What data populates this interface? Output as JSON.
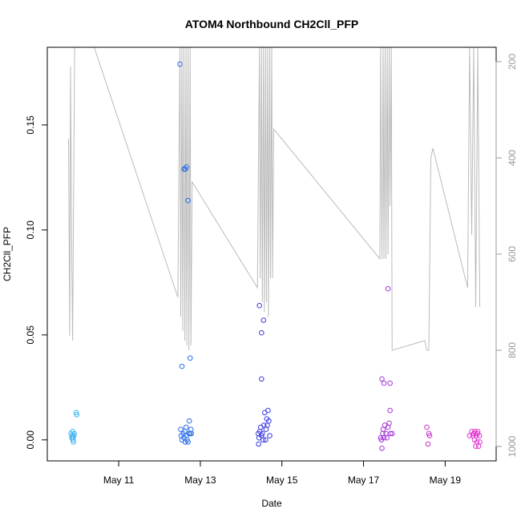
{
  "chart_data": {
    "type": "scatter",
    "title": "ATOM4 Northbound CH2Cll_PFP",
    "xlabel": "Date",
    "ylabel": "CH2Cll_PFP",
    "x_unit": "day of May",
    "xlim": [
      9.25,
      20.25
    ],
    "ylim": [
      -0.01,
      0.187
    ],
    "x_ticks": [
      {
        "value": 11,
        "label": "May 11"
      },
      {
        "value": 13,
        "label": "May 13"
      },
      {
        "value": 15,
        "label": "May 15"
      },
      {
        "value": 17,
        "label": "May 17"
      },
      {
        "value": 19,
        "label": "May 19"
      }
    ],
    "y_ticks": [
      {
        "value": 0.0,
        "label": "0.00"
      },
      {
        "value": 0.05,
        "label": "0.05"
      },
      {
        "value": 0.1,
        "label": "0.10"
      },
      {
        "value": 0.15,
        "label": "0.15"
      }
    ],
    "y2_axis": {
      "lim": [
        1030,
        170
      ],
      "reversed": true,
      "color": "#999999",
      "ticks": [
        {
          "value": 200,
          "label": "200"
        },
        {
          "value": 400,
          "label": "400"
        },
        {
          "value": 600,
          "label": "600"
        },
        {
          "value": 800,
          "label": "800"
        },
        {
          "value": 1000,
          "label": "1000"
        }
      ]
    },
    "points": [
      {
        "x": 9.83,
        "y": 0.003,
        "color": "#3fb3f0"
      },
      {
        "x": 9.85,
        "y": 0.001,
        "color": "#3fb3f0"
      },
      {
        "x": 9.86,
        "y": 0.002,
        "color": "#3fb3f0"
      },
      {
        "x": 9.87,
        "y": 0.004,
        "color": "#3fb3f0"
      },
      {
        "x": 9.88,
        "y": 0.0,
        "color": "#3fb3f0"
      },
      {
        "x": 9.88,
        "y": 0.001,
        "color": "#3fb3f0"
      },
      {
        "x": 9.89,
        "y": -0.001,
        "color": "#3fb3f0"
      },
      {
        "x": 9.9,
        "y": 0.002,
        "color": "#3fb3f0"
      },
      {
        "x": 9.91,
        "y": 0.003,
        "color": "#3fb3f0"
      },
      {
        "x": 9.96,
        "y": 0.013,
        "color": "#3fb3f0"
      },
      {
        "x": 9.97,
        "y": 0.012,
        "color": "#3fb3f0"
      },
      {
        "x": 12.5,
        "y": 0.179,
        "color": "#2a6fe8"
      },
      {
        "x": 12.6,
        "y": 0.129,
        "color": "#2a6fe8"
      },
      {
        "x": 12.63,
        "y": 0.129,
        "color": "#2a6fe8"
      },
      {
        "x": 12.66,
        "y": 0.13,
        "color": "#2a6fe8"
      },
      {
        "x": 12.7,
        "y": 0.114,
        "color": "#2a6fe8"
      },
      {
        "x": 12.75,
        "y": 0.039,
        "color": "#2a6fe8"
      },
      {
        "x": 12.55,
        "y": 0.035,
        "color": "#2a6fe8"
      },
      {
        "x": 12.52,
        "y": 0.005,
        "color": "#2a6fe8"
      },
      {
        "x": 12.53,
        "y": 0.002,
        "color": "#2a6fe8"
      },
      {
        "x": 12.55,
        "y": 0.0,
        "color": "#2a6fe8"
      },
      {
        "x": 12.58,
        "y": 0.003,
        "color": "#2a6fe8"
      },
      {
        "x": 12.6,
        "y": 0.001,
        "color": "#2a6fe8"
      },
      {
        "x": 12.62,
        "y": 0.004,
        "color": "#2a6fe8"
      },
      {
        "x": 12.63,
        "y": -0.001,
        "color": "#2a6fe8"
      },
      {
        "x": 12.65,
        "y": 0.006,
        "color": "#2a6fe8"
      },
      {
        "x": 12.66,
        "y": 0.002,
        "color": "#2a6fe8"
      },
      {
        "x": 12.68,
        "y": 0.0,
        "color": "#2a6fe8"
      },
      {
        "x": 12.7,
        "y": -0.001,
        "color": "#2a6fe8"
      },
      {
        "x": 12.72,
        "y": 0.003,
        "color": "#2a6fe8"
      },
      {
        "x": 12.73,
        "y": 0.009,
        "color": "#2a6fe8"
      },
      {
        "x": 12.75,
        "y": 0.003,
        "color": "#2a6fe8"
      },
      {
        "x": 12.77,
        "y": 0.005,
        "color": "#2a6fe8"
      },
      {
        "x": 12.78,
        "y": 0.003,
        "color": "#2a6fe8"
      },
      {
        "x": 14.45,
        "y": 0.064,
        "color": "#3a3ae0"
      },
      {
        "x": 14.55,
        "y": 0.057,
        "color": "#3a3ae0"
      },
      {
        "x": 14.5,
        "y": 0.051,
        "color": "#3a3ae0"
      },
      {
        "x": 14.5,
        "y": 0.029,
        "color": "#3a3ae0"
      },
      {
        "x": 14.42,
        "y": 0.003,
        "color": "#3a3ae0"
      },
      {
        "x": 14.43,
        "y": -0.002,
        "color": "#3a3ae0"
      },
      {
        "x": 14.44,
        "y": 0.001,
        "color": "#3a3ae0"
      },
      {
        "x": 14.46,
        "y": 0.004,
        "color": "#3a3ae0"
      },
      {
        "x": 14.48,
        "y": 0.006,
        "color": "#3a3ae0"
      },
      {
        "x": 14.5,
        "y": 0.002,
        "color": "#3a3ae0"
      },
      {
        "x": 14.52,
        "y": 0.003,
        "color": "#3a3ae0"
      },
      {
        "x": 14.54,
        "y": 0.0,
        "color": "#3a3ae0"
      },
      {
        "x": 14.56,
        "y": 0.007,
        "color": "#3a3ae0"
      },
      {
        "x": 14.58,
        "y": 0.013,
        "color": "#3a3ae0"
      },
      {
        "x": 14.6,
        "y": 0.0,
        "color": "#3a3ae0"
      },
      {
        "x": 14.61,
        "y": 0.005,
        "color": "#3a3ae0"
      },
      {
        "x": 14.63,
        "y": 0.01,
        "color": "#3a3ae0"
      },
      {
        "x": 14.64,
        "y": 0.007,
        "color": "#3a3ae0"
      },
      {
        "x": 14.66,
        "y": 0.014,
        "color": "#3a3ae0"
      },
      {
        "x": 14.68,
        "y": 0.009,
        "color": "#3a3ae0"
      },
      {
        "x": 14.7,
        "y": 0.002,
        "color": "#3a3ae0"
      },
      {
        "x": 17.6,
        "y": 0.072,
        "color": "#a436d6"
      },
      {
        "x": 17.45,
        "y": 0.029,
        "color": "#a436d6"
      },
      {
        "x": 17.5,
        "y": 0.027,
        "color": "#a436d6"
      },
      {
        "x": 17.65,
        "y": 0.027,
        "color": "#a436d6"
      },
      {
        "x": 17.65,
        "y": 0.014,
        "color": "#a436d6"
      },
      {
        "x": 17.42,
        "y": 0.001,
        "color": "#a436d6"
      },
      {
        "x": 17.44,
        "y": 0.0,
        "color": "#a436d6"
      },
      {
        "x": 17.45,
        "y": -0.004,
        "color": "#a436d6"
      },
      {
        "x": 17.47,
        "y": 0.003,
        "color": "#a436d6"
      },
      {
        "x": 17.48,
        "y": 0.005,
        "color": "#a436d6"
      },
      {
        "x": 17.5,
        "y": 0.001,
        "color": "#a436d6"
      },
      {
        "x": 17.52,
        "y": 0.007,
        "color": "#a436d6"
      },
      {
        "x": 17.55,
        "y": 0.003,
        "color": "#a436d6"
      },
      {
        "x": 17.57,
        "y": 0.001,
        "color": "#a436d6"
      },
      {
        "x": 17.6,
        "y": 0.006,
        "color": "#a436d6"
      },
      {
        "x": 17.63,
        "y": 0.008,
        "color": "#a436d6"
      },
      {
        "x": 17.66,
        "y": 0.003,
        "color": "#a436d6"
      },
      {
        "x": 17.7,
        "y": 0.003,
        "color": "#a436d6"
      },
      {
        "x": 18.55,
        "y": 0.006,
        "color": "#c434c8"
      },
      {
        "x": 18.6,
        "y": 0.003,
        "color": "#c434c8"
      },
      {
        "x": 18.62,
        "y": 0.002,
        "color": "#c434c8"
      },
      {
        "x": 18.58,
        "y": -0.002,
        "color": "#c434c8"
      },
      {
        "x": 19.6,
        "y": 0.002,
        "color": "#e02fd2"
      },
      {
        "x": 19.65,
        "y": 0.004,
        "color": "#e02fd2"
      },
      {
        "x": 19.68,
        "y": 0.002,
        "color": "#e02fd2"
      },
      {
        "x": 19.7,
        "y": 0.003,
        "color": "#e02fd2"
      },
      {
        "x": 19.72,
        "y": 0.0,
        "color": "#e02fd2"
      },
      {
        "x": 19.73,
        "y": 0.004,
        "color": "#e02fd2"
      },
      {
        "x": 19.75,
        "y": -0.003,
        "color": "#e02fd2"
      },
      {
        "x": 19.76,
        "y": 0.002,
        "color": "#e02fd2"
      },
      {
        "x": 19.78,
        "y": -0.001,
        "color": "#e02fd2"
      },
      {
        "x": 19.79,
        "y": 0.003,
        "color": "#e02fd2"
      },
      {
        "x": 19.8,
        "y": 0.004,
        "color": "#e02fd2"
      },
      {
        "x": 19.82,
        "y": -0.003,
        "color": "#e02fd2"
      },
      {
        "x": 19.84,
        "y": 0.002,
        "color": "#e02fd2"
      },
      {
        "x": 19.85,
        "y": -0.001,
        "color": "#e02fd2"
      }
    ],
    "secondary_line": {
      "color": "#bbbbbb",
      "axis": "y2",
      "points": [
        [
          9.77,
          360
        ],
        [
          9.8,
          770
        ],
        [
          9.82,
          210
        ],
        [
          9.85,
          600
        ],
        [
          9.87,
          780
        ],
        [
          9.92,
          170
        ],
        [
          9.95,
          160
        ],
        [
          10.4,
          170
        ],
        [
          12.45,
          690
        ],
        [
          12.5,
          170
        ],
        [
          12.52,
          730
        ],
        [
          12.55,
          170
        ],
        [
          12.57,
          760
        ],
        [
          12.6,
          170
        ],
        [
          12.62,
          780
        ],
        [
          12.65,
          170
        ],
        [
          12.67,
          790
        ],
        [
          12.7,
          170
        ],
        [
          12.72,
          800
        ],
        [
          12.75,
          170
        ],
        [
          12.77,
          790
        ],
        [
          12.8,
          450
        ],
        [
          14.4,
          670
        ],
        [
          14.45,
          170
        ],
        [
          14.47,
          650
        ],
        [
          14.5,
          170
        ],
        [
          14.52,
          700
        ],
        [
          14.55,
          170
        ],
        [
          14.57,
          720
        ],
        [
          14.6,
          170
        ],
        [
          14.62,
          700
        ],
        [
          14.65,
          170
        ],
        [
          14.67,
          730
        ],
        [
          14.7,
          170
        ],
        [
          14.72,
          650
        ],
        [
          14.75,
          170
        ],
        [
          14.77,
          650
        ],
        [
          14.8,
          340
        ],
        [
          17.4,
          610
        ],
        [
          17.42,
          170
        ],
        [
          17.45,
          610
        ],
        [
          17.48,
          170
        ],
        [
          17.5,
          610
        ],
        [
          17.53,
          170
        ],
        [
          17.55,
          610
        ],
        [
          17.58,
          170
        ],
        [
          17.6,
          600
        ],
        [
          17.63,
          170
        ],
        [
          17.65,
          500
        ],
        [
          17.68,
          170
        ],
        [
          17.7,
          800
        ],
        [
          18.5,
          780
        ],
        [
          18.55,
          800
        ],
        [
          18.6,
          800
        ],
        [
          18.65,
          400
        ],
        [
          18.7,
          380
        ],
        [
          19.55,
          670
        ],
        [
          19.6,
          170
        ],
        [
          19.65,
          560
        ],
        [
          19.7,
          170
        ],
        [
          19.75,
          710
        ],
        [
          19.8,
          170
        ],
        [
          19.85,
          710
        ]
      ]
    }
  }
}
